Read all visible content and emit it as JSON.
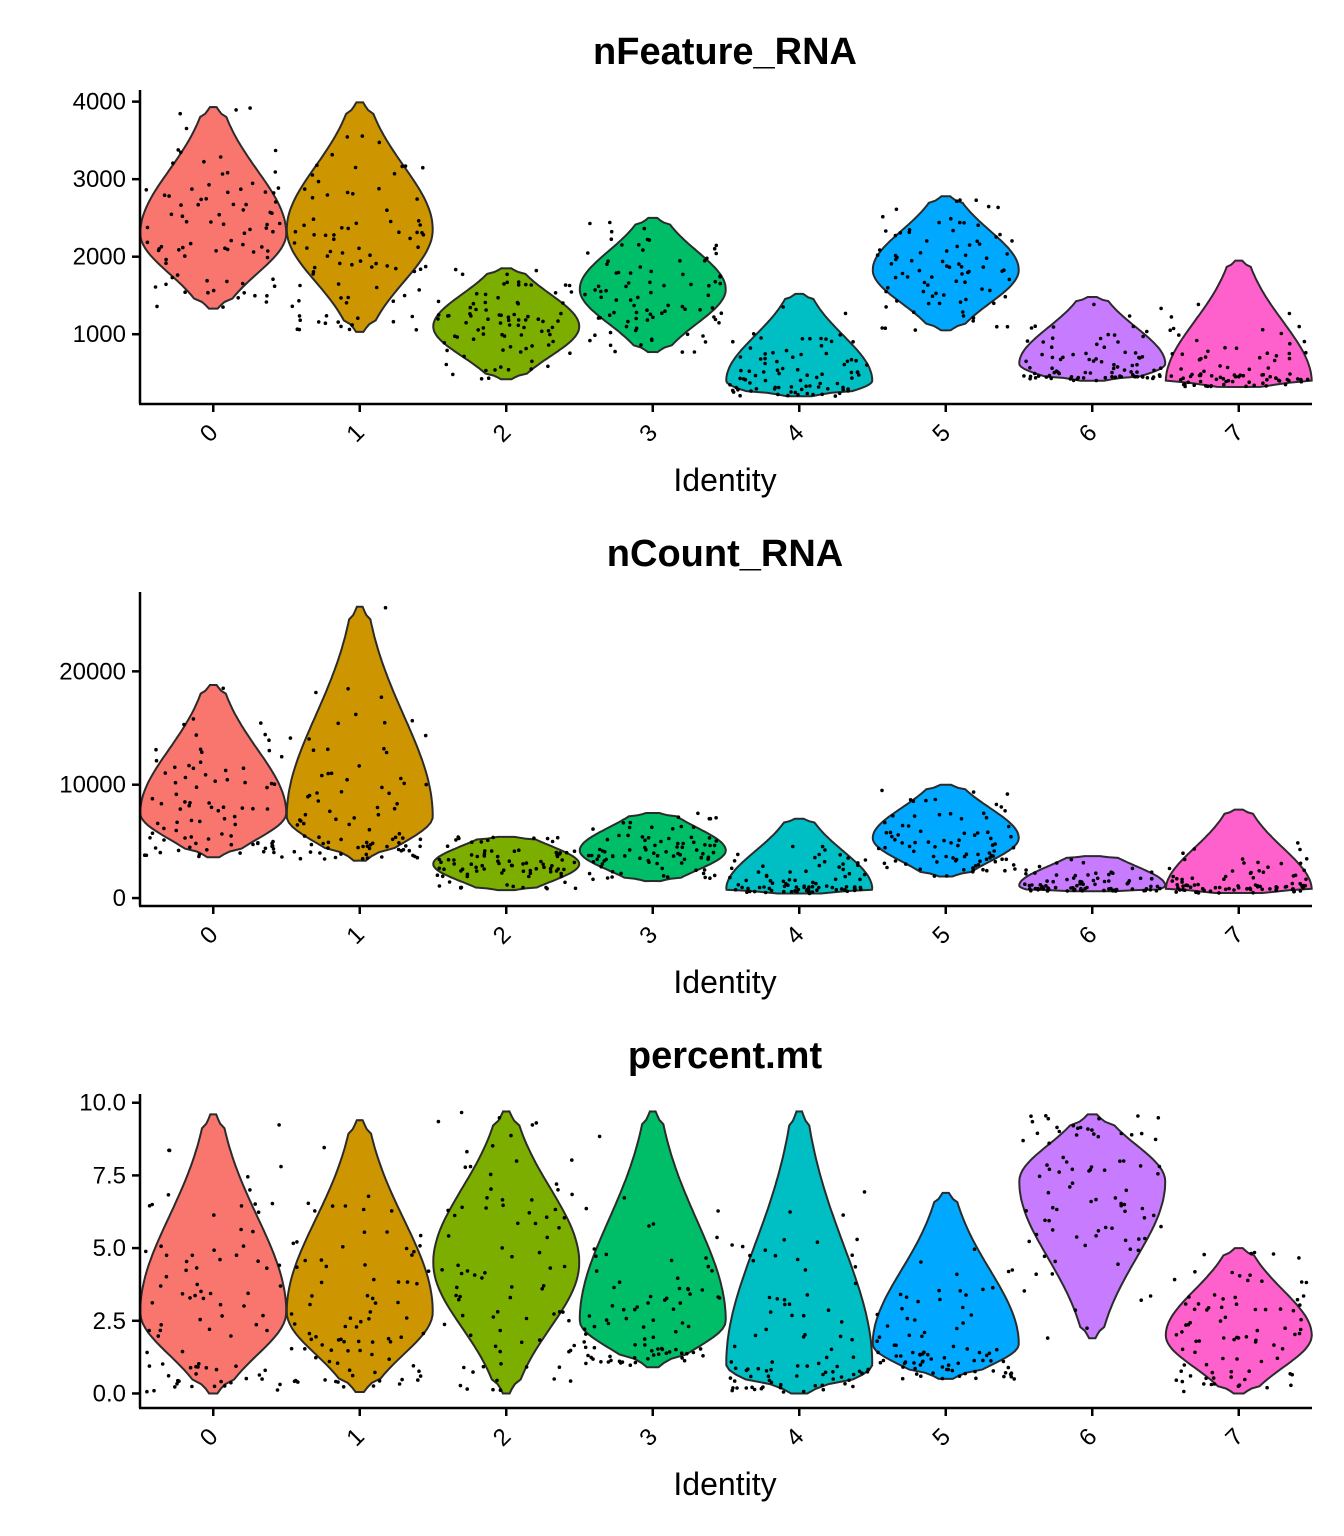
{
  "chart_data": [
    {
      "type": "violin",
      "title": "nFeature_RNA",
      "xlabel": "Identity",
      "ylabel": "",
      "categories": [
        "0",
        "1",
        "2",
        "3",
        "4",
        "5",
        "6",
        "7"
      ],
      "yticks": [
        1000,
        2000,
        3000,
        4000
      ],
      "ytick_labels": [
        "1000",
        "2000",
        "3000",
        "4000"
      ],
      "ylim": [
        100,
        4150
      ],
      "colors": [
        "#F8766D",
        "#CD9600",
        "#7CAE00",
        "#00BE67",
        "#00BFC4",
        "#00A9FF",
        "#C77CFF",
        "#FF61CC"
      ],
      "violins": [
        {
          "category": "0",
          "min": 1330,
          "max": 3930,
          "mode": 2300,
          "median": 2450
        },
        {
          "category": "1",
          "min": 1030,
          "max": 3990,
          "mode": 2350,
          "median": 2550
        },
        {
          "category": "2",
          "min": 420,
          "max": 1850,
          "mode": 1100,
          "median": 1100
        },
        {
          "category": "3",
          "min": 770,
          "max": 2500,
          "mode": 1580,
          "median": 1600
        },
        {
          "category": "4",
          "min": 200,
          "max": 1520,
          "mode": 400,
          "median": 500
        },
        {
          "category": "5",
          "min": 1050,
          "max": 2780,
          "mode": 1830,
          "median": 1850
        },
        {
          "category": "6",
          "min": 400,
          "max": 1480,
          "mode": 620,
          "median": 700
        },
        {
          "category": "7",
          "min": 320,
          "max": 1950,
          "mode": 380,
          "median": 450
        }
      ]
    },
    {
      "type": "violin",
      "title": "nCount_RNA",
      "xlabel": "Identity",
      "ylabel": "",
      "categories": [
        "0",
        "1",
        "2",
        "3",
        "4",
        "5",
        "6",
        "7"
      ],
      "yticks": [
        0,
        10000,
        20000
      ],
      "ytick_labels": [
        "0",
        "10000",
        "20000"
      ],
      "ylim": [
        -700,
        27000
      ],
      "colors": [
        "#F8766D",
        "#CD9600",
        "#7CAE00",
        "#00BE67",
        "#00BFC4",
        "#00A9FF",
        "#C77CFF",
        "#FF61CC"
      ],
      "violins": [
        {
          "category": "0",
          "min": 3600,
          "max": 18800,
          "mode": 7500,
          "median": 9000
        },
        {
          "category": "1",
          "min": 3300,
          "max": 25700,
          "mode": 7200,
          "median": 9500
        },
        {
          "category": "2",
          "min": 700,
          "max": 5400,
          "mode": 3000,
          "median": 2900
        },
        {
          "category": "3",
          "min": 1500,
          "max": 7500,
          "mode": 4200,
          "median": 4300
        },
        {
          "category": "4",
          "min": 400,
          "max": 7000,
          "mode": 800,
          "median": 1200
        },
        {
          "category": "5",
          "min": 1900,
          "max": 10000,
          "mode": 5300,
          "median": 5800
        },
        {
          "category": "6",
          "min": 600,
          "max": 3700,
          "mode": 1100,
          "median": 1200
        },
        {
          "category": "7",
          "min": 450,
          "max": 7800,
          "mode": 700,
          "median": 800
        }
      ]
    },
    {
      "type": "violin",
      "title": "percent.mt",
      "xlabel": "Identity",
      "ylabel": "",
      "categories": [
        "0",
        "1",
        "2",
        "3",
        "4",
        "5",
        "6",
        "7"
      ],
      "yticks": [
        0.0,
        2.5,
        5.0,
        7.5,
        10.0
      ],
      "ytick_labels": [
        "0.0",
        "2.5",
        "5.0",
        "7.5",
        "10.0"
      ],
      "ylim": [
        -0.5,
        10.3
      ],
      "colors": [
        "#F8766D",
        "#CD9600",
        "#7CAE00",
        "#00BE67",
        "#00BFC4",
        "#00A9FF",
        "#C77CFF",
        "#FF61CC"
      ],
      "violins": [
        {
          "category": "0",
          "min": 0.0,
          "max": 9.6,
          "mode": 2.8,
          "median": 3.0
        },
        {
          "category": "1",
          "min": 0.05,
          "max": 9.4,
          "mode": 2.8,
          "median": 3.0
        },
        {
          "category": "2",
          "min": 0.0,
          "max": 9.7,
          "mode": 4.5,
          "median": 4.0
        },
        {
          "category": "3",
          "min": 0.9,
          "max": 9.7,
          "mode": 2.5,
          "median": 2.8
        },
        {
          "category": "4",
          "min": 0.0,
          "max": 9.7,
          "mode": 1.0,
          "median": 2.5
        },
        {
          "category": "5",
          "min": 0.5,
          "max": 6.9,
          "mode": 1.7,
          "median": 2.0
        },
        {
          "category": "6",
          "min": 1.9,
          "max": 9.6,
          "mode": 7.3,
          "median": 7.5
        },
        {
          "category": "7",
          "min": 0.0,
          "max": 5.0,
          "mode": 2.0,
          "median": 1.8
        }
      ]
    }
  ]
}
